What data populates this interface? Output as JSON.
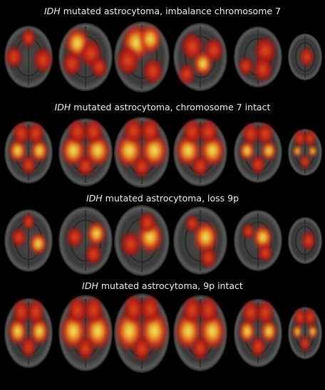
{
  "panels": [
    {
      "title_italic": "IDH",
      "title_rest": "mutated astrocytoma, imbalance chromosome 7"
    },
    {
      "title_italic": "IDH",
      "title_rest": "mutated astrocytoma, chromosome 7 intact"
    },
    {
      "title_italic": "IDH",
      "title_rest": "mutated astrocytoma, loss 9p"
    },
    {
      "title_italic": "IDH",
      "title_rest": "mutated astrocytoma, 9p intact"
    }
  ]
}
